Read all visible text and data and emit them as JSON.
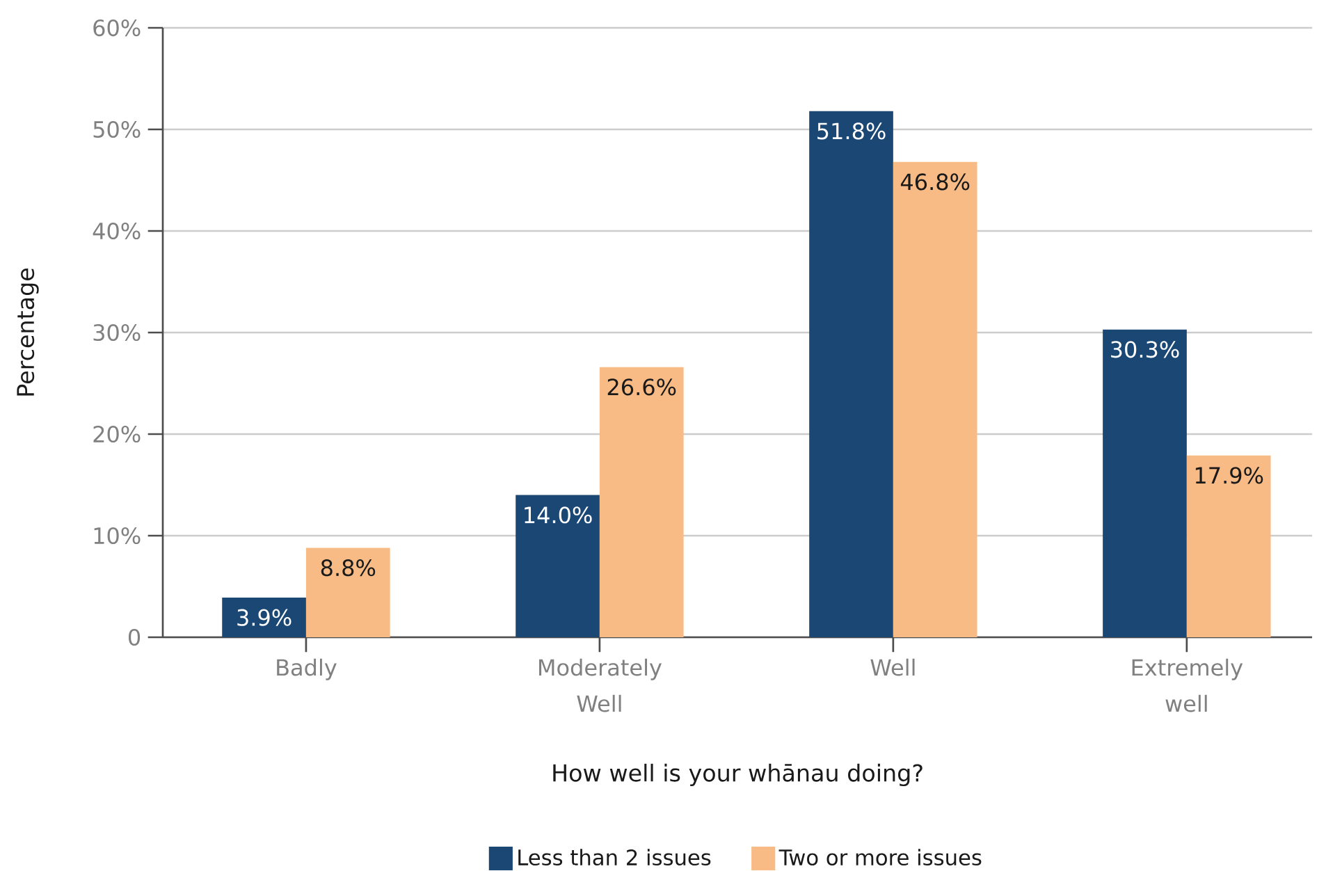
{
  "chart_data": {
    "type": "bar",
    "xlabel": "How well is your whānau doing?",
    "ylabel": "Percentage",
    "categories": [
      "Badly",
      "Moderately Well",
      "Well",
      "Extremely well"
    ],
    "series": [
      {
        "name": "Less than 2 issues",
        "color": "#1b4775",
        "values": [
          3.9,
          14.0,
          51.8,
          30.3
        ],
        "value_labels": [
          "3.9%",
          "14.0%",
          "51.8%",
          "30.3%"
        ]
      },
      {
        "name": "Two or more issues",
        "color": "#f9bb85",
        "values": [
          8.8,
          26.6,
          46.8,
          17.9
        ],
        "value_labels": [
          "8.8%",
          "26.6%",
          "46.8%",
          "17.9%"
        ]
      }
    ],
    "ylim": [
      0,
      60
    ],
    "yticks": [
      0,
      {
        "value": 10,
        "label": "10%"
      },
      {
        "value": 20,
        "label": "20%"
      },
      {
        "value": 30,
        "label": "30%"
      },
      {
        "value": 40,
        "label": "40%"
      },
      {
        "value": 50,
        "label": "50%"
      },
      {
        "value": 60,
        "label": "60%"
      }
    ],
    "grid": "y",
    "legend": "bottom"
  }
}
